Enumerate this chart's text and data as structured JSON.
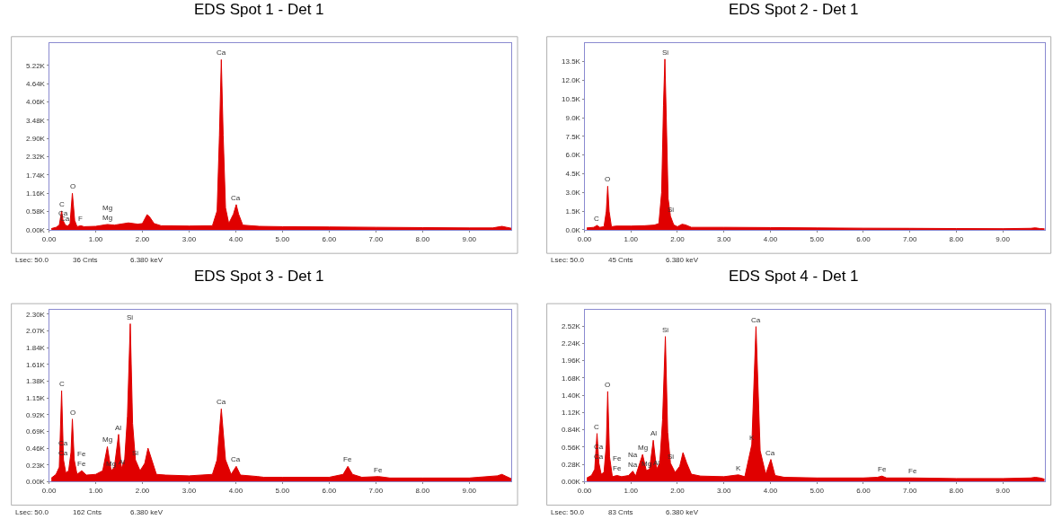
{
  "chart_data": [
    {
      "type": "area",
      "title": "EDS Spot 1 - Det 1",
      "color": "#e00000",
      "x": [
        0.05,
        0.15,
        0.22,
        0.27,
        0.3,
        0.35,
        0.4,
        0.45,
        0.5,
        0.55,
        0.6,
        0.68,
        0.75,
        1.0,
        1.25,
        1.4,
        1.7,
        1.9,
        2.0,
        2.1,
        2.15,
        2.25,
        2.4,
        3.0,
        3.5,
        3.6,
        3.65,
        3.69,
        3.73,
        3.78,
        3.85,
        3.95,
        4.01,
        4.06,
        4.15,
        4.5,
        5.0,
        6.0,
        7.0,
        8.0,
        9.0,
        9.5,
        9.7,
        9.8,
        9.9
      ],
      "values": [
        40,
        80,
        150,
        600,
        300,
        150,
        120,
        200,
        1160,
        300,
        100,
        130,
        100,
        110,
        170,
        150,
        220,
        180,
        200,
        480,
        420,
        200,
        130,
        120,
        130,
        600,
        3000,
        5400,
        3000,
        700,
        200,
        500,
        800,
        500,
        150,
        110,
        100,
        90,
        80,
        70,
        60,
        60,
        110,
        80,
        50
      ],
      "xlim": [
        0,
        9.9
      ],
      "ylim": [
        0,
        5930
      ],
      "xticks": [
        {
          "value": 0,
          "label": "0.00"
        },
        {
          "value": 1,
          "label": "1.00"
        },
        {
          "value": 2,
          "label": "2.00"
        },
        {
          "value": 3,
          "label": "3.00"
        },
        {
          "value": 4,
          "label": "4.00"
        },
        {
          "value": 5,
          "label": "5.00"
        },
        {
          "value": 6,
          "label": "6.00"
        },
        {
          "value": 7,
          "label": "7.00"
        },
        {
          "value": 8,
          "label": "8.00"
        },
        {
          "value": 9,
          "label": "9.00"
        }
      ],
      "yticks": [
        {
          "value": 0,
          "label": "0.00K"
        },
        {
          "value": 580,
          "label": "0.58K"
        },
        {
          "value": 1160,
          "label": "1.16K"
        },
        {
          "value": 1740,
          "label": "1.74K"
        },
        {
          "value": 2320,
          "label": "2.32K"
        },
        {
          "value": 2900,
          "label": "2.90K"
        },
        {
          "value": 3480,
          "label": "3.48K"
        },
        {
          "value": 4060,
          "label": "4.06K"
        },
        {
          "value": 4640,
          "label": "4.64K"
        },
        {
          "value": 5220,
          "label": "5.22K"
        }
      ],
      "annotations": [
        {
          "text": "C",
          "x": 0.27,
          "y": 600
        },
        {
          "text": "Ca",
          "x": 0.3,
          "y": 300
        },
        {
          "text": "Ca",
          "x": 0.35,
          "y": 150
        },
        {
          "text": "O",
          "x": 0.5,
          "y": 1160
        },
        {
          "text": "F",
          "x": 0.68,
          "y": 130
        },
        {
          "text": "Mg",
          "x": 1.25,
          "y": 170
        },
        {
          "text": "Mg",
          "x": 1.25,
          "y": 170
        },
        {
          "text": "Ca",
          "x": 3.69,
          "y": 5400
        },
        {
          "text": "Ca",
          "x": 4.01,
          "y": 800
        },
        "Lsec: 50.0",
        "36 Cnts",
        "6.380 keV"
      ]
    },
    {
      "type": "area",
      "title": "EDS Spot 2 - Det 1",
      "color": "#e00000",
      "x": [
        0.05,
        0.2,
        0.27,
        0.33,
        0.42,
        0.47,
        0.5,
        0.53,
        0.58,
        0.68,
        1.0,
        1.3,
        1.5,
        1.6,
        1.66,
        1.7,
        1.73,
        1.76,
        1.8,
        1.85,
        1.92,
        2.0,
        2.1,
        2.17,
        2.3,
        3.0,
        4.0,
        5.0,
        6.0,
        7.0,
        8.0,
        9.0,
        9.6,
        9.7,
        9.8,
        9.9
      ],
      "values": [
        150,
        200,
        350,
        200,
        250,
        1500,
        3500,
        1500,
        250,
        300,
        300,
        330,
        380,
        500,
        3000,
        10000,
        13700,
        9000,
        2500,
        1100,
        400,
        250,
        450,
        400,
        200,
        200,
        180,
        150,
        130,
        120,
        100,
        90,
        120,
        160,
        100,
        80
      ],
      "xlim": [
        0,
        9.9
      ],
      "ylim": [
        0,
        15000
      ],
      "xticks": [
        {
          "value": 0,
          "label": "0.00"
        },
        {
          "value": 1,
          "label": "1.00"
        },
        {
          "value": 2,
          "label": "2.00"
        },
        {
          "value": 3,
          "label": "3.00"
        },
        {
          "value": 4,
          "label": "4.00"
        },
        {
          "value": 5,
          "label": "5.00"
        },
        {
          "value": 6,
          "label": "6.00"
        },
        {
          "value": 7,
          "label": "7.00"
        },
        {
          "value": 8,
          "label": "8.00"
        },
        {
          "value": 9,
          "label": "9.00"
        }
      ],
      "yticks": [
        {
          "value": 0,
          "label": "0.0K"
        },
        {
          "value": 1500,
          "label": "1.5K"
        },
        {
          "value": 3000,
          "label": "3.0K"
        },
        {
          "value": 4500,
          "label": "4.5K"
        },
        {
          "value": 6000,
          "label": "6.0K"
        },
        {
          "value": 7500,
          "label": "7.5K"
        },
        {
          "value": 9000,
          "label": "9.0K"
        },
        {
          "value": 10500,
          "label": "10.5K"
        },
        {
          "value": 12000,
          "label": "12.0K"
        },
        {
          "value": 13500,
          "label": "13.5K"
        }
      ],
      "annotations": [
        {
          "text": "Si",
          "x": 1.73,
          "y": 13700
        },
        {
          "text": "O",
          "x": 0.5,
          "y": 3500
        },
        {
          "text": "C",
          "x": 0.27,
          "y": 350
        },
        {
          "text": "Si",
          "x": 1.85,
          "y": 1100
        },
        "Lsec: 50.0",
        "45 Cnts",
        "6.380 keV"
      ]
    },
    {
      "type": "area",
      "title": "EDS Spot 3 - Det 1",
      "color": "#e00000",
      "x": [
        0.05,
        0.15,
        0.22,
        0.27,
        0.31,
        0.36,
        0.42,
        0.47,
        0.5,
        0.54,
        0.6,
        0.7,
        0.8,
        1.0,
        1.15,
        1.25,
        1.33,
        1.4,
        1.49,
        1.55,
        1.62,
        1.68,
        1.74,
        1.79,
        1.85,
        1.95,
        2.05,
        2.12,
        2.2,
        2.3,
        2.5,
        3.0,
        3.5,
        3.6,
        3.69,
        3.78,
        3.9,
        4.01,
        4.1,
        4.3,
        4.47,
        4.6,
        5.0,
        6.0,
        6.3,
        6.4,
        6.5,
        6.7,
        7.06,
        7.3,
        8.0,
        9.0,
        9.6,
        9.7,
        9.8,
        9.9
      ],
      "values": [
        50,
        100,
        200,
        1250,
        300,
        120,
        150,
        400,
        860,
        300,
        100,
        150,
        90,
        100,
        150,
        480,
        150,
        200,
        650,
        180,
        300,
        900,
        2170,
        800,
        300,
        150,
        250,
        460,
        300,
        100,
        90,
        80,
        100,
        300,
        1000,
        300,
        100,
        210,
        90,
        80,
        70,
        60,
        60,
        60,
        100,
        210,
        100,
        60,
        70,
        50,
        50,
        50,
        80,
        100,
        70,
        40
      ],
      "xlim": [
        0,
        9.9
      ],
      "ylim": [
        0,
        2360
      ],
      "xticks": [
        {
          "value": 0,
          "label": "0.00"
        },
        {
          "value": 1,
          "label": "1.00"
        },
        {
          "value": 2,
          "label": "2.00"
        },
        {
          "value": 3,
          "label": "3.00"
        },
        {
          "value": 4,
          "label": "4.00"
        },
        {
          "value": 5,
          "label": "5.00"
        },
        {
          "value": 6,
          "label": "6.00"
        },
        {
          "value": 7,
          "label": "7.00"
        },
        {
          "value": 8,
          "label": "8.00"
        },
        {
          "value": 9,
          "label": "9.00"
        }
      ],
      "yticks": [
        {
          "value": 0,
          "label": "0.00K"
        },
        {
          "value": 230,
          "label": "0.23K"
        },
        {
          "value": 460,
          "label": "0.46K"
        },
        {
          "value": 690,
          "label": "0.69K"
        },
        {
          "value": 920,
          "label": "0.92K"
        },
        {
          "value": 1150,
          "label": "1.15K"
        },
        {
          "value": 1380,
          "label": "1.38K"
        },
        {
          "value": 1610,
          "label": "1.61K"
        },
        {
          "value": 1840,
          "label": "1.84K"
        },
        {
          "value": 2070,
          "label": "2.07K"
        },
        {
          "value": 2300,
          "label": "2.30K"
        }
      ],
      "annotations": [
        {
          "text": "Si",
          "x": 1.74,
          "y": 2170
        },
        {
          "text": "C",
          "x": 0.27,
          "y": 1250
        },
        {
          "text": "O",
          "x": 0.5,
          "y": 860
        },
        {
          "text": "Ca",
          "x": 0.31,
          "y": 300
        },
        {
          "text": "Ca",
          "x": 0.31,
          "y": 300
        },
        {
          "text": "Fe",
          "x": 0.7,
          "y": 150
        },
        {
          "text": "Fe",
          "x": 0.7,
          "y": 150
        },
        {
          "text": "Mg",
          "x": 1.25,
          "y": 480
        },
        {
          "text": "Mg",
          "x": 1.33,
          "y": 150
        },
        {
          "text": "Al",
          "x": 1.49,
          "y": 650
        },
        {
          "text": "Al",
          "x": 1.55,
          "y": 180
        },
        {
          "text": "Si",
          "x": 1.85,
          "y": 300
        },
        {
          "text": "Ca",
          "x": 3.69,
          "y": 1000
        },
        {
          "text": "Ca",
          "x": 4.01,
          "y": 210
        },
        {
          "text": "Fe",
          "x": 6.4,
          "y": 210
        },
        {
          "text": "Fe",
          "x": 7.06,
          "y": 70
        },
        "Lsec: 50.0",
        "162 Cnts",
        "6.380 keV"
      ]
    },
    {
      "type": "area",
      "title": "EDS Spot 4 - Det 1",
      "color": "#e00000",
      "x": [
        0.05,
        0.15,
        0.22,
        0.27,
        0.31,
        0.36,
        0.42,
        0.47,
        0.5,
        0.54,
        0.6,
        0.7,
        0.8,
        0.95,
        1.04,
        1.1,
        1.25,
        1.33,
        1.4,
        1.48,
        1.55,
        1.62,
        1.68,
        1.74,
        1.79,
        1.85,
        1.95,
        2.05,
        2.12,
        2.2,
        2.3,
        2.5,
        3.0,
        3.31,
        3.45,
        3.6,
        3.69,
        3.78,
        3.9,
        4.01,
        4.1,
        4.3,
        5.0,
        6.0,
        6.3,
        6.4,
        6.5,
        7.06,
        8.0,
        9.0,
        9.6,
        9.7,
        9.8,
        9.9
      ],
      "values": [
        60,
        100,
        200,
        780,
        300,
        120,
        150,
        600,
        1460,
        400,
        80,
        100,
        80,
        100,
        170,
        90,
        440,
        180,
        200,
        670,
        200,
        300,
        1000,
        2350,
        800,
        300,
        150,
        250,
        470,
        300,
        120,
        90,
        80,
        110,
        80,
        600,
        2510,
        500,
        120,
        360,
        100,
        70,
        60,
        60,
        70,
        90,
        60,
        60,
        50,
        50,
        60,
        70,
        60,
        40
      ],
      "xlim": [
        0,
        9.9
      ],
      "ylim": [
        0,
        2780
      ],
      "xticks": [
        {
          "value": 0,
          "label": "0.00"
        },
        {
          "value": 1,
          "label": "1.00"
        },
        {
          "value": 2,
          "label": "2.00"
        },
        {
          "value": 3,
          "label": "3.00"
        },
        {
          "value": 4,
          "label": "4.00"
        },
        {
          "value": 5,
          "label": "5.00"
        },
        {
          "value": 6,
          "label": "6.00"
        },
        {
          "value": 7,
          "label": "7.00"
        },
        {
          "value": 8,
          "label": "8.00"
        },
        {
          "value": 9,
          "label": "9.00"
        }
      ],
      "yticks": [
        {
          "value": 0,
          "label": "0.00K"
        },
        {
          "value": 280,
          "label": "0.28K"
        },
        {
          "value": 560,
          "label": "0.56K"
        },
        {
          "value": 840,
          "label": "0.84K"
        },
        {
          "value": 1120,
          "label": "1.12K"
        },
        {
          "value": 1400,
          "label": "1.40K"
        },
        {
          "value": 1680,
          "label": "1.68K"
        },
        {
          "value": 1960,
          "label": "1.96K"
        },
        {
          "value": 2240,
          "label": "2.24K"
        },
        {
          "value": 2520,
          "label": "2.52K"
        }
      ],
      "annotations": [
        {
          "text": "Ca",
          "x": 3.69,
          "y": 2510
        },
        {
          "text": "Si",
          "x": 1.74,
          "y": 2350
        },
        {
          "text": "O",
          "x": 0.5,
          "y": 1460
        },
        {
          "text": "C",
          "x": 0.27,
          "y": 780
        },
        {
          "text": "Na",
          "x": 1.04,
          "y": 170
        },
        {
          "text": "Na",
          "x": 1.04,
          "y": 170
        },
        {
          "text": "Mg",
          "x": 1.25,
          "y": 440
        },
        {
          "text": "Al",
          "x": 1.48,
          "y": 670
        },
        {
          "text": "Ca",
          "x": 0.31,
          "y": 300
        },
        {
          "text": "Ca",
          "x": 0.31,
          "y": 300
        },
        {
          "text": "Fe",
          "x": 0.7,
          "y": 100
        },
        {
          "text": "Fe",
          "x": 0.7,
          "y": 100
        },
        {
          "text": "Mg",
          "x": 1.33,
          "y": 180
        },
        {
          "text": "Al",
          "x": 1.55,
          "y": 200
        },
        {
          "text": "Si",
          "x": 1.85,
          "y": 300
        },
        {
          "text": "K",
          "x": 3.31,
          "y": 110
        },
        {
          "text": "K",
          "x": 3.6,
          "y": 600
        },
        {
          "text": "Ca",
          "x": 4.01,
          "y": 360
        },
        {
          "text": "Fe",
          "x": 6.4,
          "y": 90
        },
        {
          "text": "Fe",
          "x": 7.06,
          "y": 60
        },
        "Lsec: 50.0",
        "83 Cnts",
        "6.380 keV"
      ]
    }
  ]
}
